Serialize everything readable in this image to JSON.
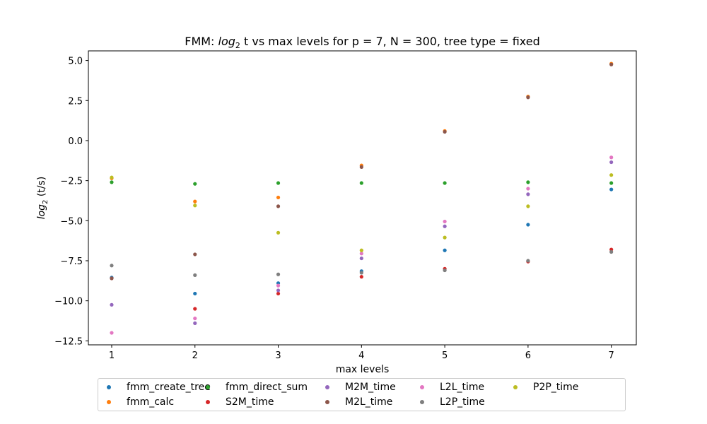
{
  "chart_data": {
    "type": "scatter",
    "title_prefix": "FMM: ",
    "title_log": "log",
    "title_sub": "2",
    "title_suffix": " t vs max levels for p = 7, N = 300, tree type = fixed",
    "xlabel": "max levels",
    "ylabel_log": "log",
    "ylabel_sub": "2",
    "ylabel_suffix": " (t/s)",
    "x": [
      1,
      2,
      3,
      4,
      5,
      6,
      7
    ],
    "x_ticks": [
      "1",
      "2",
      "3",
      "4",
      "5",
      "6",
      "7"
    ],
    "y_ticks": [
      "−12.5",
      "−10.0",
      "−7.5",
      "−5.0",
      "−2.5",
      "0.0",
      "2.5",
      "5.0"
    ],
    "y_tick_values": [
      -12.5,
      -10.0,
      -7.5,
      -5.0,
      -2.5,
      0.0,
      2.5,
      5.0
    ],
    "xlim": [
      0.72,
      7.3
    ],
    "ylim": [
      -12.75,
      5.6
    ],
    "grid": false,
    "legend_position": "below",
    "series": [
      {
        "name": "fmm_create_tree",
        "color": "#1f77b4",
        "values": [
          -8.55,
          -9.55,
          -8.9,
          -8.15,
          -6.85,
          -5.25,
          -3.05
        ]
      },
      {
        "name": "fmm_calc",
        "color": "#ff7f0e",
        "values": [
          -2.35,
          -3.8,
          -3.55,
          -1.55,
          0.6,
          2.75,
          4.8
        ]
      },
      {
        "name": "fmm_direct_sum",
        "color": "#2ca02c",
        "values": [
          -2.6,
          -2.7,
          -2.65,
          -2.65,
          -2.65,
          -2.6,
          -2.65
        ]
      },
      {
        "name": "S2M_time",
        "color": "#d62728",
        "values": [
          -8.6,
          -10.5,
          -9.55,
          -8.5,
          -8.0,
          -7.55,
          -6.8
        ]
      },
      {
        "name": "M2M_time",
        "color": "#9467bd",
        "values": [
          -10.25,
          -11.4,
          -9.35,
          -7.35,
          -5.35,
          -3.35,
          -1.35
        ]
      },
      {
        "name": "M2L_time",
        "color": "#8c564b",
        "values": [
          -8.6,
          -7.1,
          -4.1,
          -1.65,
          0.55,
          2.7,
          4.75
        ]
      },
      {
        "name": "L2L_time",
        "color": "#e377c2",
        "values": [
          -12.0,
          -11.1,
          -9.05,
          -7.05,
          -5.05,
          -3.0,
          -1.05
        ]
      },
      {
        "name": "L2P_time",
        "color": "#7f7f7f",
        "values": [
          -7.8,
          -8.4,
          -8.35,
          -8.25,
          -8.1,
          -7.5,
          -6.95
        ]
      },
      {
        "name": "P2P_time",
        "color": "#bcbd22",
        "values": [
          -2.3,
          -4.05,
          -5.75,
          -6.85,
          -6.05,
          -4.1,
          -2.15
        ]
      }
    ]
  }
}
